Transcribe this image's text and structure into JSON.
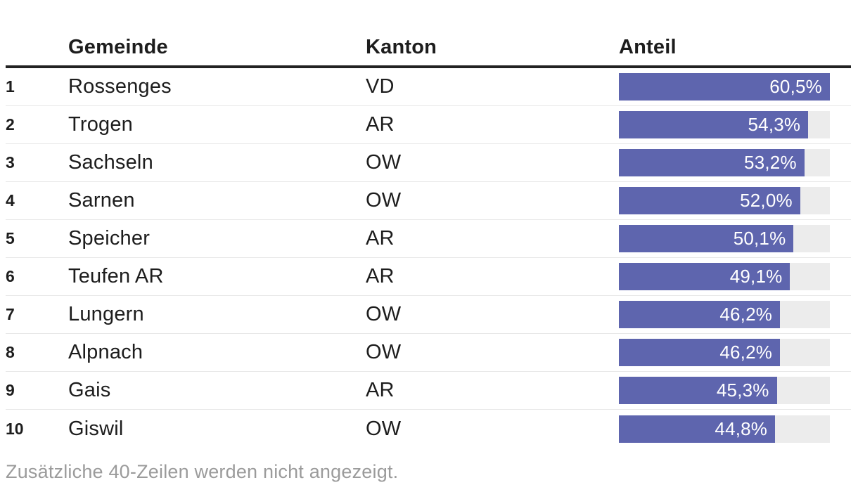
{
  "colors": {
    "bar_fill": "#5e65ae",
    "bar_track": "#ececec",
    "bar_label": "#ffffff",
    "header_rule": "#222222",
    "row_divider": "#e8e8e8",
    "text": "#1d1d1d",
    "footer_text": "#9b9b9b"
  },
  "table": {
    "headers": {
      "rank": "",
      "gemeinde": "Gemeinde",
      "kanton": "Kanton",
      "anteil": "Anteil"
    },
    "rows": [
      {
        "rank": "1",
        "gemeinde": "Rossenges",
        "kanton": "VD",
        "anteil": "60,5%",
        "value": 60.5
      },
      {
        "rank": "2",
        "gemeinde": "Trogen",
        "kanton": "AR",
        "anteil": "54,3%",
        "value": 54.3
      },
      {
        "rank": "3",
        "gemeinde": "Sachseln",
        "kanton": "OW",
        "anteil": "53,2%",
        "value": 53.2
      },
      {
        "rank": "4",
        "gemeinde": "Sarnen",
        "kanton": "OW",
        "anteil": "52,0%",
        "value": 52.0
      },
      {
        "rank": "5",
        "gemeinde": "Speicher",
        "kanton": "AR",
        "anteil": "50,1%",
        "value": 50.1
      },
      {
        "rank": "6",
        "gemeinde": "Teufen AR",
        "kanton": "AR",
        "anteil": "49,1%",
        "value": 49.1
      },
      {
        "rank": "7",
        "gemeinde": "Lungern",
        "kanton": "OW",
        "anteil": "46,2%",
        "value": 46.2
      },
      {
        "rank": "8",
        "gemeinde": "Alpnach",
        "kanton": "OW",
        "anteil": "46,2%",
        "value": 46.2
      },
      {
        "rank": "9",
        "gemeinde": "Gais",
        "kanton": "AR",
        "anteil": "45,3%",
        "value": 45.3
      },
      {
        "rank": "10",
        "gemeinde": "Giswil",
        "kanton": "OW",
        "anteil": "44,8%",
        "value": 44.8
      }
    ],
    "footer_note": "Zusätzliche 40-Zeilen werden nicht angezeigt."
  },
  "chart_data": {
    "type": "table",
    "title": "",
    "columns": [
      "",
      "Gemeinde",
      "Kanton",
      "Anteil"
    ],
    "rows": [
      [
        "1",
        "Rossenges",
        "VD",
        "60,5%"
      ],
      [
        "2",
        "Trogen",
        "AR",
        "54,3%"
      ],
      [
        "3",
        "Sachseln",
        "OW",
        "53,2%"
      ],
      [
        "4",
        "Sarnen",
        "OW",
        "52,0%"
      ],
      [
        "5",
        "Speicher",
        "AR",
        "50,1%"
      ],
      [
        "6",
        "Teufen AR",
        "AR",
        "49,1%"
      ],
      [
        "7",
        "Lungern",
        "OW",
        "46,2%"
      ],
      [
        "8",
        "Alpnach",
        "OW",
        "46,2%"
      ],
      [
        "9",
        "Gais",
        "AR",
        "45,3%"
      ],
      [
        "10",
        "Giswil",
        "OW",
        "44,8%"
      ]
    ],
    "bar_column": "Anteil",
    "bar_values_percent": [
      60.5,
      54.3,
      53.2,
      52.0,
      50.1,
      49.1,
      46.2,
      46.2,
      45.3,
      44.8
    ],
    "bar_scale_max": 60.5,
    "footnote": "Zusätzliche 40-Zeilen werden nicht angezeigt."
  }
}
